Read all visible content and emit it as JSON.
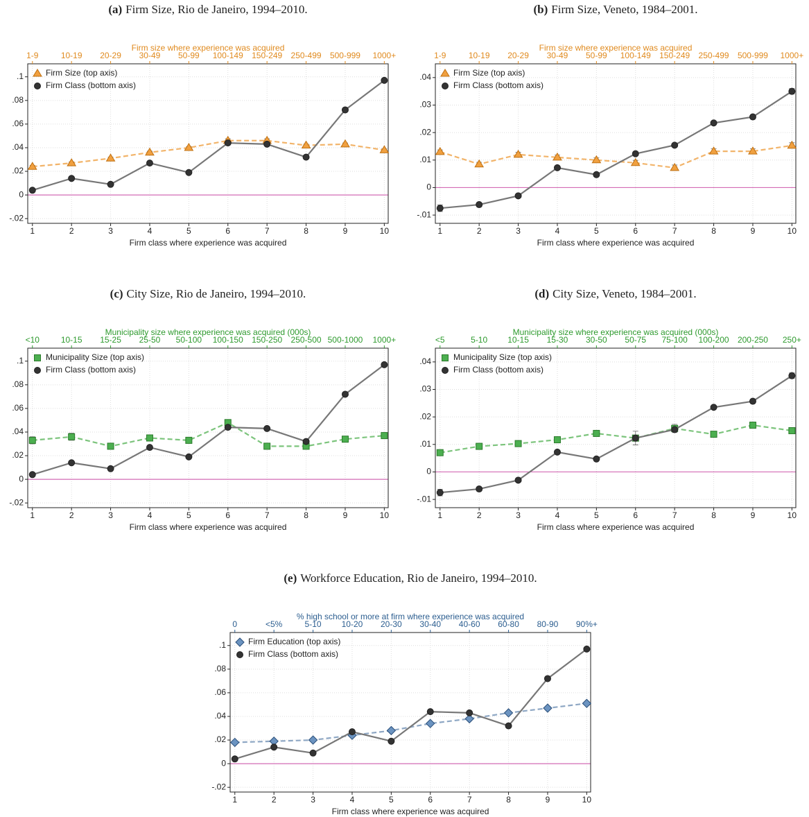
{
  "chart_data": [
    {
      "type": "line",
      "label": "(a)",
      "title": "Firm Size, Rio de Janeiro, 1994–2010.",
      "top_axis_label": "Firm size where experience was acquired",
      "top_axis_color": "#e08a1e",
      "top_categories": [
        "1-9",
        "10-19",
        "20-29",
        "30-49",
        "50-99",
        "100-149",
        "150-249",
        "250-499",
        "500-999",
        "1000+"
      ],
      "xlabel": "Firm class where experience was acquired",
      "x": [
        1,
        2,
        3,
        4,
        5,
        6,
        7,
        8,
        9,
        10
      ],
      "xlim": [
        0.88,
        10.1
      ],
      "xticks": [
        1,
        2,
        3,
        4,
        5,
        6,
        7,
        8,
        9,
        10
      ],
      "ylim": [
        -0.024,
        0.111
      ],
      "yticks": [
        {
          "value": -0.02,
          "label": "-.02"
        },
        0,
        {
          "value": 0.02,
          "label": ".02"
        },
        {
          "value": 0.04,
          "label": ".04"
        },
        {
          "value": 0.06,
          "label": ".06"
        },
        {
          "value": 0.08,
          "label": ".08"
        },
        {
          "value": 0.1,
          "label": ".1"
        }
      ],
      "grid": true,
      "legend": "upper left",
      "hline": 0,
      "hline_color": "#d36bb5",
      "series": [
        {
          "name": "Firm Size (top axis)",
          "axis": "top",
          "marker": "triangle",
          "dash": true,
          "color": "#f0a040",
          "line_color": "#f2b46a",
          "values": [
            0.024,
            0.027,
            0.031,
            0.036,
            0.04,
            0.046,
            0.046,
            0.042,
            0.043,
            0.038
          ],
          "errors": [
            0.001,
            0.001,
            0.001,
            0.001,
            0.001,
            0.0015,
            0.0015,
            0.001,
            0.001,
            0.001
          ]
        },
        {
          "name": "Firm Class (bottom axis)",
          "axis": "bottom",
          "marker": "circle",
          "dash": false,
          "color": "#333333",
          "line_color": "#777777",
          "values": [
            0.004,
            0.014,
            0.009,
            0.027,
            0.019,
            0.044,
            0.043,
            0.032,
            0.072,
            0.097
          ],
          "errors": [
            0.001,
            0.001,
            0.001,
            0.001,
            0.001,
            0.001,
            0.001,
            0.001,
            0.0012,
            0.0015
          ]
        }
      ]
    },
    {
      "type": "line",
      "label": "(b)",
      "title": "Firm Size, Veneto, 1984–2001.",
      "top_axis_label": "Firm size where experience was acquired",
      "top_axis_color": "#e08a1e",
      "top_categories": [
        "1-9",
        "10-19",
        "20-29",
        "30-49",
        "50-99",
        "100-149",
        "150-249",
        "250-499",
        "500-999",
        "1000+"
      ],
      "xlabel": "Firm class where experience was acquired",
      "x": [
        1,
        2,
        3,
        4,
        5,
        6,
        7,
        8,
        9,
        10
      ],
      "xlim": [
        0.88,
        10.1
      ],
      "xticks": [
        1,
        2,
        3,
        4,
        5,
        6,
        7,
        8,
        9,
        10
      ],
      "ylim": [
        -0.013,
        0.045
      ],
      "yticks": [
        {
          "value": -0.01,
          "label": "-.01"
        },
        0,
        {
          "value": 0.01,
          "label": ".01"
        },
        {
          "value": 0.02,
          "label": ".02"
        },
        {
          "value": 0.03,
          "label": ".03"
        },
        {
          "value": 0.04,
          "label": ".04"
        }
      ],
      "grid": true,
      "legend": "upper left",
      "hline": 0,
      "hline_color": "#d36bb5",
      "series": [
        {
          "name": "Firm Size (top axis)",
          "axis": "top",
          "marker": "triangle",
          "dash": true,
          "color": "#f0a040",
          "line_color": "#f2b46a",
          "values": [
            0.013,
            0.0085,
            0.012,
            0.011,
            0.01,
            0.009,
            0.0072,
            0.0132,
            0.0132,
            0.0153
          ],
          "errors": [
            0.0007,
            0.0007,
            0.0008,
            0.0008,
            0.0008,
            0.0009,
            0.001,
            0.0009,
            0.0009,
            0.001
          ]
        },
        {
          "name": "Firm Class (bottom axis)",
          "axis": "bottom",
          "marker": "circle",
          "dash": false,
          "color": "#333333",
          "line_color": "#777777",
          "values": [
            -0.0075,
            -0.0062,
            -0.003,
            0.0072,
            0.0047,
            0.0123,
            0.0154,
            0.0235,
            0.0257,
            0.035
          ],
          "errors": [
            0.0012,
            0.0007,
            0.0006,
            0.0006,
            0.0006,
            0.0007,
            0.0006,
            0.0006,
            0.0007,
            0.001
          ]
        }
      ]
    },
    {
      "type": "line",
      "label": "(c)",
      "title": "City Size, Rio de Janeiro, 1994–2010.",
      "top_axis_label": "Municipality size where experience was acquired (000s)",
      "top_axis_color": "#2e9a2e",
      "top_categories": [
        "<10",
        "10-15",
        "15-25",
        "25-50",
        "50-100",
        "100-150",
        "150-250",
        "250-500",
        "500-1000",
        "1000+"
      ],
      "xlabel": "Firm class where experience was acquired",
      "x": [
        1,
        2,
        3,
        4,
        5,
        6,
        7,
        8,
        9,
        10
      ],
      "xlim": [
        0.88,
        10.1
      ],
      "xticks": [
        1,
        2,
        3,
        4,
        5,
        6,
        7,
        8,
        9,
        10
      ],
      "ylim": [
        -0.024,
        0.111
      ],
      "yticks": [
        {
          "value": -0.02,
          "label": "-.02"
        },
        0,
        {
          "value": 0.02,
          "label": ".02"
        },
        {
          "value": 0.04,
          "label": ".04"
        },
        {
          "value": 0.06,
          "label": ".06"
        },
        {
          "value": 0.08,
          "label": ".08"
        },
        {
          "value": 0.1,
          "label": ".1"
        }
      ],
      "grid": true,
      "legend": "upper left",
      "hline": 0,
      "hline_color": "#d36bb5",
      "series": [
        {
          "name": "Municipality Size (top axis)",
          "axis": "top",
          "marker": "square",
          "dash": true,
          "color": "#4caf50",
          "line_color": "#7cc47c",
          "values": [
            0.033,
            0.036,
            0.028,
            0.035,
            0.033,
            0.048,
            0.028,
            0.028,
            0.034,
            0.037
          ],
          "errors": [
            0.003,
            0.003,
            0.0015,
            0.002,
            0.0015,
            0.002,
            0.0015,
            0.0015,
            0.0012,
            0.0012
          ]
        },
        {
          "name": "Firm Class (bottom axis)",
          "axis": "bottom",
          "marker": "circle",
          "dash": false,
          "color": "#333333",
          "line_color": "#777777",
          "values": [
            0.004,
            0.014,
            0.009,
            0.027,
            0.019,
            0.044,
            0.043,
            0.032,
            0.072,
            0.097
          ],
          "errors": [
            0.001,
            0.001,
            0.001,
            0.001,
            0.001,
            0.001,
            0.001,
            0.001,
            0.0012,
            0.0015
          ]
        }
      ]
    },
    {
      "type": "line",
      "label": "(d)",
      "title": "City Size, Veneto, 1984–2001.",
      "top_axis_label": "Municipality size where experience was acquired (000s)",
      "top_axis_color": "#2e9a2e",
      "top_categories": [
        "<5",
        "5-10",
        "10-15",
        "15-30",
        "30-50",
        "50-75",
        "75-100",
        "100-200",
        "200-250",
        "250+"
      ],
      "xlabel": "Firm class where experience was acquired",
      "x": [
        1,
        2,
        3,
        4,
        5,
        6,
        7,
        8,
        9,
        10
      ],
      "xlim": [
        0.88,
        10.1
      ],
      "xticks": [
        1,
        2,
        3,
        4,
        5,
        6,
        7,
        8,
        9,
        10
      ],
      "ylim": [
        -0.013,
        0.045
      ],
      "yticks": [
        {
          "value": -0.01,
          "label": "-.01"
        },
        0,
        {
          "value": 0.01,
          "label": ".01"
        },
        {
          "value": 0.02,
          "label": ".02"
        },
        {
          "value": 0.03,
          "label": ".03"
        },
        {
          "value": 0.04,
          "label": ".04"
        }
      ],
      "grid": true,
      "legend": "upper left",
      "hline": 0,
      "hline_color": "#d36bb5",
      "series": [
        {
          "name": "Municipality Size (top axis)",
          "axis": "top",
          "marker": "square",
          "dash": true,
          "color": "#4caf50",
          "line_color": "#7cc47c",
          "values": [
            0.007,
            0.0093,
            0.0103,
            0.0117,
            0.014,
            0.0123,
            0.0158,
            0.0137,
            0.017,
            0.015
          ],
          "errors": [
            0.0008,
            0.0008,
            0.0008,
            0.0008,
            0.0008,
            0.0025,
            0.0015,
            0.001,
            0.001,
            0.001
          ]
        },
        {
          "name": "Firm Class (bottom axis)",
          "axis": "bottom",
          "marker": "circle",
          "dash": false,
          "color": "#333333",
          "line_color": "#777777",
          "values": [
            -0.0075,
            -0.0062,
            -0.003,
            0.0072,
            0.0047,
            0.0123,
            0.0154,
            0.0235,
            0.0257,
            0.035
          ],
          "errors": [
            0.0012,
            0.0007,
            0.0006,
            0.0006,
            0.0006,
            0.0007,
            0.0006,
            0.0006,
            0.0007,
            0.001
          ]
        }
      ]
    },
    {
      "type": "line",
      "label": "(e)",
      "title": "Workforce Education, Rio de Janeiro, 1994–2010.",
      "top_axis_label": "% high school or more at firm where experience was acquired",
      "top_axis_color": "#2b5d8f",
      "top_categories": [
        "0",
        "<5%",
        "5-10",
        "10-20",
        "20-30",
        "30-40",
        "40-60",
        "60-80",
        "80-90",
        "90%+"
      ],
      "xlabel": "Firm class where experience was acquired",
      "x": [
        1,
        2,
        3,
        4,
        5,
        6,
        7,
        8,
        9,
        10
      ],
      "xlim": [
        0.88,
        10.1
      ],
      "xticks": [
        1,
        2,
        3,
        4,
        5,
        6,
        7,
        8,
        9,
        10
      ],
      "ylim": [
        -0.024,
        0.111
      ],
      "yticks": [
        {
          "value": -0.02,
          "label": "-.02"
        },
        0,
        {
          "value": 0.02,
          "label": ".02"
        },
        {
          "value": 0.04,
          "label": ".04"
        },
        {
          "value": 0.06,
          "label": ".06"
        },
        {
          "value": 0.08,
          "label": ".08"
        },
        {
          "value": 0.1,
          "label": ".1"
        }
      ],
      "grid": true,
      "legend": "upper left",
      "hline": 0,
      "hline_color": "#d36bb5",
      "series": [
        {
          "name": "Firm Education (top axis)",
          "axis": "top",
          "marker": "diamond",
          "dash": true,
          "color": "#6b93c0",
          "line_color": "#8ea7c4",
          "values": [
            0.018,
            0.019,
            0.02,
            0.024,
            0.028,
            0.034,
            0.038,
            0.043,
            0.047,
            0.051
          ],
          "errors": [
            0.001,
            0.001,
            0.001,
            0.001,
            0.001,
            0.001,
            0.001,
            0.001,
            0.001,
            0.001
          ]
        },
        {
          "name": "Firm Class (bottom axis)",
          "axis": "bottom",
          "marker": "circle",
          "dash": false,
          "color": "#333333",
          "line_color": "#777777",
          "values": [
            0.004,
            0.014,
            0.009,
            0.027,
            0.019,
            0.044,
            0.043,
            0.032,
            0.072,
            0.097
          ],
          "errors": [
            0.001,
            0.001,
            0.001,
            0.001,
            0.001,
            0.001,
            0.001,
            0.001,
            0.0012,
            0.0015
          ]
        }
      ]
    }
  ]
}
